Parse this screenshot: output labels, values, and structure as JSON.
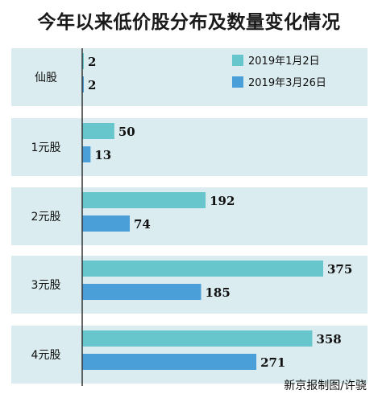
{
  "title": "今年以来低价股分布及数量变化情况",
  "credit": "新京报制图/许骁",
  "colors": {
    "band": "#daecef",
    "series1": "#66c6cc",
    "series2": "#4b9fd8",
    "axis": "#333333",
    "text": "#111111"
  },
  "chart_data": {
    "type": "bar",
    "orientation": "horizontal",
    "title": "今年以来低价股分布及数量变化情况",
    "categories": [
      "仙股",
      "1元股",
      "2元股",
      "3元股",
      "4元股"
    ],
    "series": [
      {
        "name": "2019年1月2日",
        "values": [
          2,
          50,
          192,
          375,
          358
        ]
      },
      {
        "name": "2019年3月26日",
        "values": [
          2,
          13,
          74,
          185,
          271
        ]
      }
    ],
    "data_labels": true,
    "legend_position": "top-right",
    "xlim": [
      0,
      400
    ],
    "grid": false
  }
}
